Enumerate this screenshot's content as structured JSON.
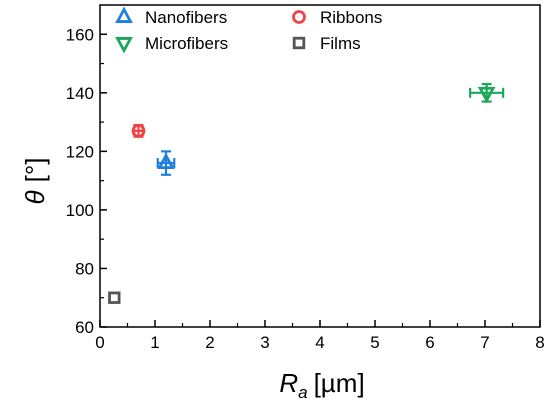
{
  "chart_data": {
    "type": "scatter",
    "xlabel": "R",
    "xlabel_sub": "a",
    "xlabel_unit": "[µm]",
    "ylabel": "θ",
    "ylabel_unit": "[°]",
    "xlim": [
      0,
      8
    ],
    "ylim": [
      60,
      170
    ],
    "xticks": [
      "0",
      "1",
      "2",
      "3",
      "4",
      "5",
      "6",
      "7",
      "8"
    ],
    "yticks": [
      "60",
      "80",
      "100",
      "120",
      "140",
      "160"
    ],
    "legend_position": "top-left",
    "series": [
      {
        "name": "Nanofibers",
        "marker": "triangle-up",
        "color": "#1f7fe0",
        "x": 1.2,
        "y": 116,
        "xerr": 0.15,
        "yerr": 4
      },
      {
        "name": "Ribbons",
        "marker": "circle",
        "color": "#ef4545",
        "x": 0.7,
        "y": 127,
        "xerr": 0.08,
        "yerr": 2
      },
      {
        "name": "Microfibers",
        "marker": "triangle-down",
        "color": "#1ba85a",
        "x": 7.03,
        "y": 140,
        "xerr": 0.3,
        "yerr": 3
      },
      {
        "name": "Films",
        "marker": "square",
        "color": "#555555",
        "x": 0.26,
        "y": 70,
        "xerr": 0,
        "yerr": 0
      }
    ]
  }
}
